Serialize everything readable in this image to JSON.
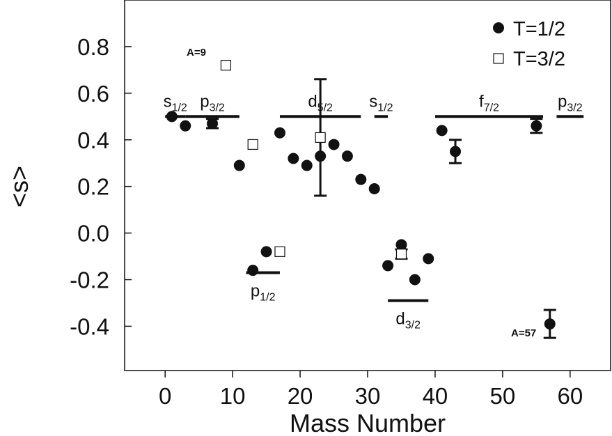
{
  "chart_data": {
    "type": "scatter",
    "xlabel": "Mass Number",
    "ylabel": "<s>",
    "xlim": [
      -6,
      66
    ],
    "ylim": [
      -0.59,
      1.0
    ],
    "x_ticks": [
      0,
      10,
      20,
      30,
      40,
      50,
      60
    ],
    "x_tick_labels": [
      "0",
      "10",
      "20",
      "30",
      "40",
      "50",
      "60"
    ],
    "y_ticks": [
      0.8,
      0.6,
      0.4,
      0.2,
      0.0,
      -0.2,
      -0.4
    ],
    "y_tick_labels": [
      "0.8",
      "0.6",
      "0.4",
      "0.2",
      "0.0",
      "-0.2",
      "-0.4"
    ],
    "legend": {
      "position": "top-right",
      "entries": [
        {
          "label": "T=1/2",
          "marker": "filled-circle"
        },
        {
          "label": "T=3/2",
          "marker": "open-square"
        }
      ]
    },
    "series": [
      {
        "name": "T=1/2",
        "marker": "filled-circle",
        "points": [
          {
            "x": 1,
            "y": 0.5,
            "err": 0.005
          },
          {
            "x": 3,
            "y": 0.46,
            "err": 0.005
          },
          {
            "x": 7,
            "y": 0.47,
            "err": 0.02
          },
          {
            "x": 11,
            "y": 0.29,
            "err": 0.005
          },
          {
            "x": 13,
            "y": -0.16,
            "err": 0.005
          },
          {
            "x": 15,
            "y": -0.08,
            "err": 0.005
          },
          {
            "x": 17,
            "y": 0.43,
            "err": 0.005
          },
          {
            "x": 19,
            "y": 0.32,
            "err": 0.005
          },
          {
            "x": 21,
            "y": 0.29,
            "err": 0.005
          },
          {
            "x": 23,
            "y": 0.33,
            "err": 0.005
          },
          {
            "x": 25,
            "y": 0.38,
            "err": 0.005
          },
          {
            "x": 27,
            "y": 0.33,
            "err": 0.005
          },
          {
            "x": 29,
            "y": 0.23,
            "err": 0.005
          },
          {
            "x": 31,
            "y": 0.19,
            "err": 0.005
          },
          {
            "x": 33,
            "y": -0.14,
            "err": 0.005
          },
          {
            "x": 35,
            "y": -0.05,
            "err": 0.005
          },
          {
            "x": 37,
            "y": -0.2,
            "err": 0.005
          },
          {
            "x": 39,
            "y": -0.11,
            "err": 0.005
          },
          {
            "x": 41,
            "y": 0.44,
            "err": 0.005
          },
          {
            "x": 43,
            "y": 0.35,
            "err": 0.05
          },
          {
            "x": 55,
            "y": 0.46,
            "err": 0.03
          },
          {
            "x": 57,
            "y": -0.39,
            "err": 0.06
          }
        ]
      },
      {
        "name": "T=3/2",
        "marker": "open-square",
        "points": [
          {
            "x": 9,
            "y": 0.72,
            "err": 0
          },
          {
            "x": 13,
            "y": 0.38,
            "err": 0
          },
          {
            "x": 17,
            "y": -0.08,
            "err": 0
          },
          {
            "x": 23,
            "y": 0.41,
            "err": 0.25
          },
          {
            "x": 35,
            "y": -0.09,
            "err": 0.02
          }
        ]
      }
    ],
    "shell_model_levels": [
      {
        "name": "s",
        "sub": "1/2",
        "value": 0.5,
        "x_range": [
          0,
          3
        ]
      },
      {
        "name": "p",
        "sub": "3/2",
        "value": 0.5,
        "x_range": [
          3,
          11
        ]
      },
      {
        "name": "p",
        "sub": "1/2",
        "value": -0.17,
        "x_range": [
          12,
          17
        ]
      },
      {
        "name": "d",
        "sub": "5/2",
        "value": 0.5,
        "x_range": [
          17,
          29
        ]
      },
      {
        "name": "s",
        "sub": "1/2",
        "value": 0.5,
        "x_range": [
          31,
          33
        ]
      },
      {
        "name": "d",
        "sub": "3/2",
        "value": -0.29,
        "x_range": [
          33,
          39
        ]
      },
      {
        "name": "f",
        "sub": "7/2",
        "value": 0.5,
        "x_range": [
          40,
          56
        ]
      },
      {
        "name": "p",
        "sub": "3/2",
        "value": 0.5,
        "x_range": [
          58,
          62
        ]
      }
    ],
    "annotations": [
      {
        "text": "A=9"
      },
      {
        "text": "A=57"
      }
    ]
  }
}
